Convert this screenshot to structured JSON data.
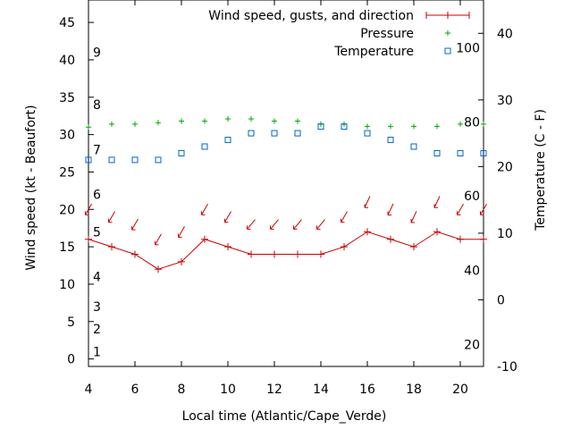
{
  "chart_data": {
    "type": "line",
    "xlabel": "Local time (Atlantic/Cape_Verde)",
    "ylabel_left": "Wind speed (kt - Beaufort)",
    "ylabel_right": "Temperature (C - F)",
    "xlim": [
      4,
      21
    ],
    "ylim_left": [
      -1,
      48
    ],
    "ylim_right": [
      -10,
      45
    ],
    "x_ticks": [
      4,
      6,
      8,
      10,
      12,
      14,
      16,
      18,
      20
    ],
    "y_left_ticks": [
      0,
      5,
      10,
      15,
      20,
      25,
      30,
      35,
      40,
      45
    ],
    "y_right_ticks": [
      -10,
      0,
      10,
      20,
      30,
      40
    ],
    "beaufort_labels": [
      {
        "label": "1",
        "y": 1
      },
      {
        "label": "2",
        "y": 4
      },
      {
        "label": "3",
        "y": 7
      },
      {
        "label": "4",
        "y": 11
      },
      {
        "label": "5",
        "y": 17
      },
      {
        "label": "6",
        "y": 22
      },
      {
        "label": "7",
        "y": 28
      },
      {
        "label": "8",
        "y": 34
      },
      {
        "label": "9",
        "y": 41
      }
    ],
    "fahrenheit_labels": [
      {
        "label": "20",
        "c": -6.7
      },
      {
        "label": "40",
        "c": 4.4
      },
      {
        "label": "60",
        "c": 15.6
      },
      {
        "label": "80",
        "c": 26.7
      },
      {
        "label": "100",
        "c": 37.8
      }
    ],
    "legend": [
      {
        "label": "Wind speed, gusts, and direction",
        "color": "#cc0000"
      },
      {
        "label": "Pressure",
        "color": "#00aa00"
      },
      {
        "label": "Temperature",
        "color": "#0066cc"
      }
    ],
    "series": [
      {
        "name": "Wind speed",
        "x": [
          4,
          5,
          6,
          7,
          8,
          9,
          10,
          11,
          12,
          13,
          14,
          15,
          16,
          17,
          18,
          19,
          20,
          21
        ],
        "values": [
          16,
          15,
          14,
          12,
          13,
          16,
          15,
          14,
          14,
          14,
          14,
          15,
          17,
          16,
          15,
          17,
          16,
          16
        ]
      },
      {
        "name": "Wind direction",
        "x": [
          4,
          5,
          6,
          7,
          8,
          9,
          10,
          11,
          12,
          13,
          14,
          15,
          16,
          17,
          18,
          19,
          20,
          21
        ],
        "y": [
          20,
          19,
          18,
          16,
          17,
          20,
          19,
          18,
          18,
          18,
          18,
          19,
          21,
          20,
          19,
          21,
          20,
          20
        ],
        "angle_deg": [
          30,
          30,
          30,
          30,
          30,
          30,
          30,
          40,
          40,
          40,
          40,
          30,
          25,
          25,
          25,
          25,
          30,
          30
        ]
      },
      {
        "name": "Pressure",
        "x": [
          4,
          5,
          6,
          7,
          8,
          9,
          10,
          11,
          12,
          13,
          14,
          15,
          16,
          17,
          18,
          19,
          20,
          21
        ],
        "values": [
          31,
          31.4,
          31.4,
          31.6,
          31.8,
          31.8,
          32.1,
          32.1,
          31.8,
          31.8,
          31.4,
          31.4,
          31.1,
          31.1,
          31.1,
          31.1,
          31.4,
          31.4
        ]
      },
      {
        "name": "Temperature",
        "x": [
          4,
          5,
          6,
          7,
          8,
          9,
          10,
          11,
          12,
          13,
          14,
          15,
          16,
          17,
          18,
          19,
          20,
          21
        ],
        "values": [
          21,
          21,
          21,
          21,
          22,
          23,
          24,
          25,
          25,
          25,
          26,
          26,
          25,
          24,
          23,
          22,
          22,
          22
        ]
      }
    ]
  }
}
